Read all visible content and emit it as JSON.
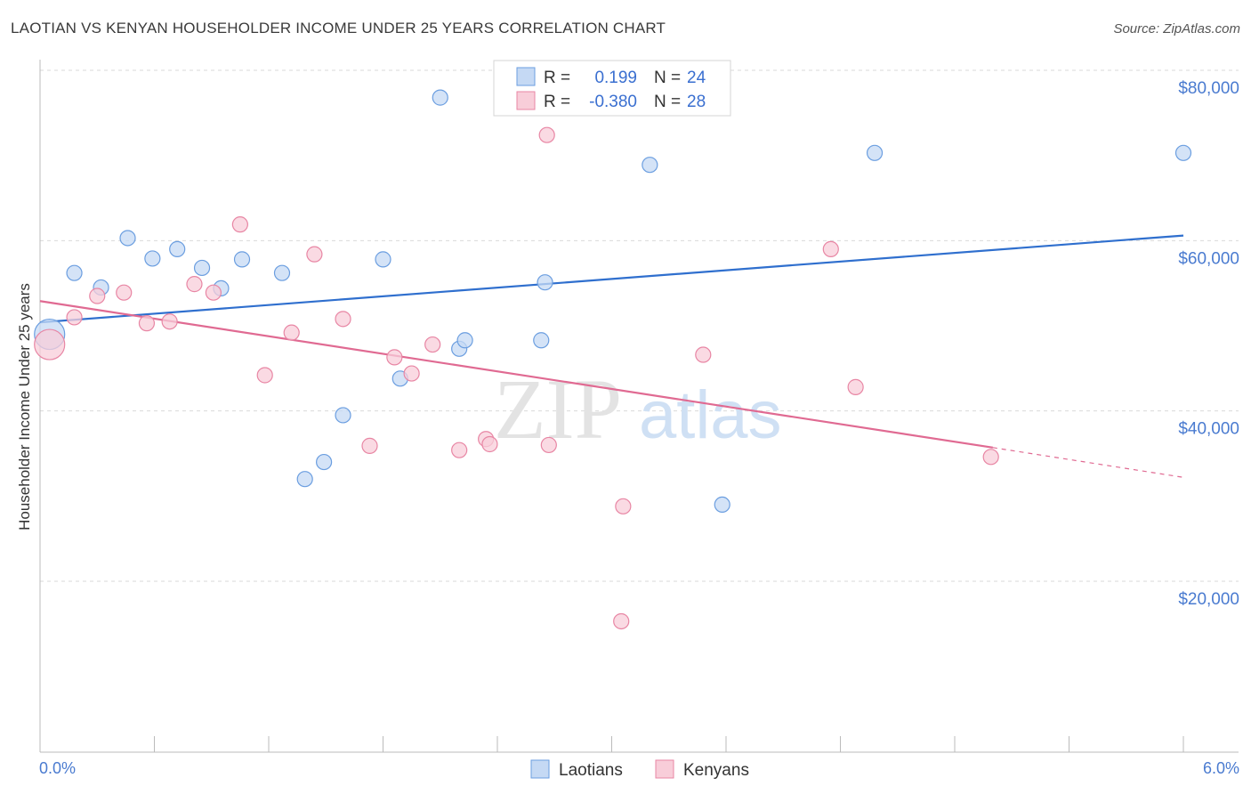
{
  "title": "LAOTIAN VS KENYAN HOUSEHOLDER INCOME UNDER 25 YEARS CORRELATION CHART",
  "source": "Source: ZipAtlas.com",
  "watermark": {
    "zip": "ZIP",
    "atlas": "atlas"
  },
  "chart_data": {
    "type": "scatter",
    "ylabel": "Householder Income Under 25 years",
    "xlim": [
      0,
      6
    ],
    "ylim": [
      0,
      82000
    ],
    "x_tick_labels": [
      "0.0%",
      "6.0%"
    ],
    "y_ticks": [
      {
        "value": 20000,
        "label": "$20,000"
      },
      {
        "value": 40000,
        "label": "$40,000"
      },
      {
        "value": 60000,
        "label": "$60,000"
      },
      {
        "value": 80000,
        "label": "$80,000"
      }
    ],
    "stats_legend": [
      {
        "r_label": "R =",
        "r_value": "0.199",
        "n_label": "N =",
        "n_value": "24"
      },
      {
        "r_label": "R =",
        "r_value": "-0.380",
        "n_label": "N =",
        "n_value": "28"
      }
    ],
    "series": [
      {
        "name": "Laotians",
        "color": "#6b9ee0",
        "fill": "#c5d9f4",
        "trend": {
          "x0": 0.0,
          "y0": 50400,
          "x1": 6.0,
          "y1": 60600
        },
        "points": [
          {
            "x": 0.05,
            "y": 49000,
            "big": true
          },
          {
            "x": 0.18,
            "y": 56200
          },
          {
            "x": 0.32,
            "y": 54500
          },
          {
            "x": 0.46,
            "y": 60300
          },
          {
            "x": 0.59,
            "y": 57900
          },
          {
            "x": 0.72,
            "y": 59000
          },
          {
            "x": 0.85,
            "y": 56800
          },
          {
            "x": 0.95,
            "y": 54400
          },
          {
            "x": 1.06,
            "y": 57800
          },
          {
            "x": 1.27,
            "y": 56200
          },
          {
            "x": 1.39,
            "y": 32000
          },
          {
            "x": 1.49,
            "y": 34000
          },
          {
            "x": 1.59,
            "y": 39500
          },
          {
            "x": 1.8,
            "y": 57800
          },
          {
            "x": 1.89,
            "y": 43800
          },
          {
            "x": 2.1,
            "y": 76800
          },
          {
            "x": 2.2,
            "y": 47300
          },
          {
            "x": 2.23,
            "y": 48300
          },
          {
            "x": 2.63,
            "y": 48300
          },
          {
            "x": 2.65,
            "y": 55100
          },
          {
            "x": 3.2,
            "y": 68900
          },
          {
            "x": 3.58,
            "y": 29000
          },
          {
            "x": 4.38,
            "y": 70300
          },
          {
            "x": 6.0,
            "y": 70300
          }
        ]
      },
      {
        "name": "Kenyans",
        "color": "#e886a4",
        "fill": "#f8cdd9",
        "trend": {
          "x0": 0.0,
          "y0": 52900,
          "x1": 5.0,
          "y1": 35700,
          "dash_x1": 6.0,
          "dash_y1": 32200
        },
        "points": [
          {
            "x": 0.05,
            "y": 47800,
            "big": true
          },
          {
            "x": 0.18,
            "y": 51000
          },
          {
            "x": 0.3,
            "y": 53500
          },
          {
            "x": 0.44,
            "y": 53900
          },
          {
            "x": 0.56,
            "y": 50300
          },
          {
            "x": 0.68,
            "y": 50500
          },
          {
            "x": 0.81,
            "y": 54900
          },
          {
            "x": 0.91,
            "y": 53900
          },
          {
            "x": 1.05,
            "y": 61900
          },
          {
            "x": 1.18,
            "y": 44200
          },
          {
            "x": 1.32,
            "y": 49200
          },
          {
            "x": 1.44,
            "y": 58400
          },
          {
            "x": 1.59,
            "y": 50800
          },
          {
            "x": 1.73,
            "y": 35900
          },
          {
            "x": 1.86,
            "y": 46300
          },
          {
            "x": 1.95,
            "y": 44400
          },
          {
            "x": 2.06,
            "y": 47800
          },
          {
            "x": 2.2,
            "y": 35400
          },
          {
            "x": 2.34,
            "y": 36700
          },
          {
            "x": 2.36,
            "y": 36100
          },
          {
            "x": 2.66,
            "y": 72400
          },
          {
            "x": 2.67,
            "y": 36000
          },
          {
            "x": 3.05,
            "y": 15300
          },
          {
            "x": 3.06,
            "y": 28800
          },
          {
            "x": 3.48,
            "y": 46600
          },
          {
            "x": 4.15,
            "y": 59000
          },
          {
            "x": 4.28,
            "y": 42800
          },
          {
            "x": 4.99,
            "y": 34600
          }
        ]
      }
    ]
  }
}
